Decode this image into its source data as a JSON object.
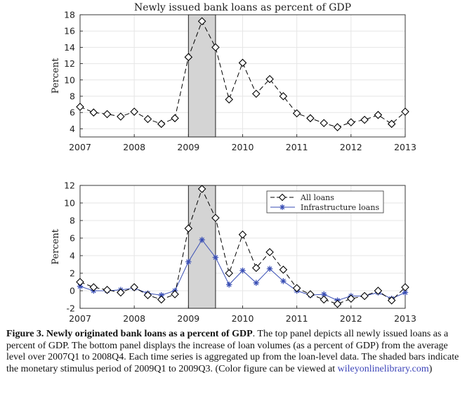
{
  "chart_data": [
    {
      "type": "line",
      "title": "Newly issued bank loans as percent of GDP",
      "xlabel": "",
      "ylabel": "Percent",
      "xlim": [
        2007,
        2013
      ],
      "ylim": [
        3,
        18
      ],
      "xticks": [
        2007,
        2008,
        2009,
        2010,
        2011,
        2012,
        2013
      ],
      "yticks": [
        4,
        6,
        8,
        10,
        12,
        14,
        16,
        18
      ],
      "shaded_region": [
        2009,
        2009.5
      ],
      "series": [
        {
          "name": "All loans",
          "marker": "diamond",
          "color": "#000000",
          "x": [
            2007,
            2007.25,
            2007.5,
            2007.75,
            2008,
            2008.25,
            2008.5,
            2008.75,
            2009,
            2009.25,
            2009.5,
            2009.75,
            2010,
            2010.25,
            2010.5,
            2010.75,
            2011,
            2011.25,
            2011.5,
            2011.75,
            2012,
            2012.25,
            2012.5,
            2012.75,
            2013
          ],
          "values": [
            6.7,
            6.0,
            5.8,
            5.5,
            6.1,
            5.2,
            4.6,
            5.3,
            12.8,
            17.2,
            14.0,
            7.6,
            12.1,
            8.3,
            10.1,
            8.0,
            5.9,
            5.3,
            4.7,
            4.2,
            4.8,
            5.1,
            5.7,
            4.6,
            6.1
          ]
        }
      ]
    },
    {
      "type": "line",
      "title": "",
      "xlabel": "",
      "ylabel": "Percent",
      "xlim": [
        2007,
        2013
      ],
      "ylim": [
        -2,
        12
      ],
      "xticks": [
        2007,
        2008,
        2009,
        2010,
        2011,
        2012,
        2013
      ],
      "yticks": [
        -2,
        0,
        2,
        4,
        6,
        8,
        10,
        12
      ],
      "shaded_region": [
        2009,
        2009.5
      ],
      "legend_position": "top-right",
      "series": [
        {
          "name": "All loans",
          "marker": "diamond",
          "color": "#000000",
          "x": [
            2007,
            2007.25,
            2007.5,
            2007.75,
            2008,
            2008.25,
            2008.5,
            2008.75,
            2009,
            2009.25,
            2009.5,
            2009.75,
            2010,
            2010.25,
            2010.5,
            2010.75,
            2011,
            2011.25,
            2011.5,
            2011.75,
            2012,
            2012.25,
            2012.5,
            2012.75,
            2013
          ],
          "values": [
            1.0,
            0.4,
            0.1,
            -0.2,
            0.4,
            -0.5,
            -1.0,
            -0.4,
            7.1,
            11.6,
            8.3,
            2.0,
            6.4,
            2.6,
            4.4,
            2.4,
            0.3,
            -0.4,
            -1.0,
            -1.5,
            -0.9,
            -0.6,
            0.0,
            -1.1,
            0.4
          ]
        },
        {
          "name": "Infrastructure loans",
          "marker": "star",
          "color": "#3a4fb5",
          "x": [
            2007,
            2007.25,
            2007.5,
            2007.75,
            2008,
            2008.25,
            2008.5,
            2008.75,
            2009,
            2009.25,
            2009.5,
            2009.75,
            2010,
            2010.25,
            2010.5,
            2010.75,
            2011,
            2011.25,
            2011.5,
            2011.75,
            2012,
            2012.25,
            2012.5,
            2012.75,
            2013
          ],
          "values": [
            0.5,
            0.0,
            0.0,
            0.1,
            0.3,
            -0.3,
            -0.5,
            0.0,
            3.3,
            5.8,
            3.8,
            0.7,
            2.3,
            0.9,
            2.5,
            1.1,
            0.0,
            -0.5,
            -0.4,
            -1.1,
            -0.6,
            -0.6,
            -0.2,
            -0.9,
            -0.2
          ]
        }
      ]
    }
  ],
  "caption": {
    "label": "Figure 3.",
    "title": "Newly originated bank loans as a percent of GDP",
    "body": ". The top panel depicts all newly issued loans as a percent of GDP. The bottom panel displays the increase of loan volumes (as a percent of GDP) from the average level over 2007Q1 to 2008Q4. Each time series is aggregated up from the loan-level data. The shaded bars indicate the monetary stimulus period of 2009Q1 to 2009Q3. (Color figure can be viewed at ",
    "link": "wileyonlinelibrary.com",
    "end": ")"
  }
}
